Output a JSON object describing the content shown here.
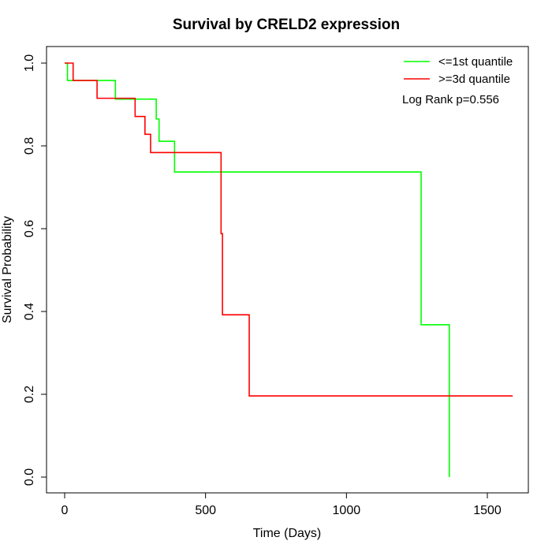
{
  "chart_data": {
    "type": "line",
    "title": "Survival by CRELD2 expression",
    "xlabel": "Time (Days)",
    "ylabel": "Survival Probability",
    "xlim": [
      0,
      1600
    ],
    "ylim": [
      0,
      1.0
    ],
    "x_ticks": [
      0,
      500,
      1000,
      1500
    ],
    "x_tick_labels": [
      "0",
      "500",
      "1000",
      "1500"
    ],
    "y_ticks": [
      0.0,
      0.2,
      0.4,
      0.6,
      0.8,
      1.0
    ],
    "y_tick_labels": [
      "0.0",
      "0.2",
      "0.4",
      "0.6",
      "0.8",
      "1.0"
    ],
    "grid": false,
    "legend_position": "top-right",
    "annotation": "Log Rank p=0.556",
    "series": [
      {
        "name": "<=1st quantile",
        "color": "#00ff00",
        "step": true,
        "x": [
          0,
          10,
          180,
          325,
          335,
          390,
          1265,
          1365,
          1365
        ],
        "y": [
          1.0,
          0.958,
          0.913,
          0.865,
          0.811,
          0.737,
          0.368,
          0.0,
          0.0
        ]
      },
      {
        "name": ">=3d quantile",
        "color": "#ff0000",
        "step": true,
        "x": [
          0,
          30,
          115,
          250,
          285,
          305,
          555,
          560,
          655,
          1590
        ],
        "y": [
          1.0,
          0.958,
          0.915,
          0.871,
          0.828,
          0.784,
          0.588,
          0.392,
          0.196,
          0.196
        ]
      }
    ]
  }
}
